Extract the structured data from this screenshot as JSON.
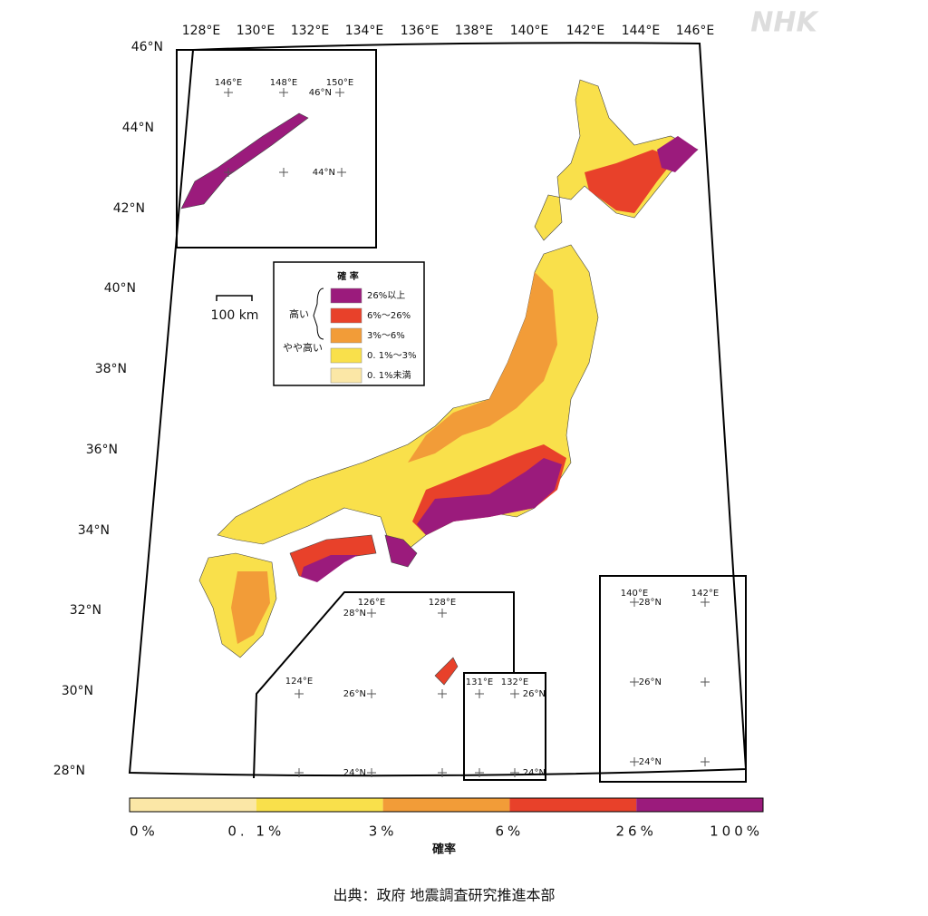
{
  "logo": "NHK",
  "map": {
    "lon_labels": [
      "128°E",
      "130°E",
      "132°E",
      "134°E",
      "136°E",
      "138°E",
      "140°E",
      "142°E",
      "144°E",
      "146°E"
    ],
    "lat_labels": [
      "46°N",
      "44°N",
      "42°N",
      "40°N",
      "38°N",
      "36°N",
      "34°N",
      "32°N",
      "30°N",
      "28°N"
    ],
    "scale_bar": "100 km",
    "inset_north": [
      "146°E",
      "148°E",
      "150°E",
      "46°N",
      "44°N"
    ],
    "inset_south": [
      "126°E",
      "128°E",
      "28°N",
      "124°E",
      "26°N",
      "24°N"
    ],
    "inset_small": [
      "131°E",
      "132°E",
      "26°N",
      "24°N"
    ],
    "inset_east": [
      "140°E",
      "142°E",
      "28°N",
      "26°N",
      "24°N"
    ]
  },
  "legend": {
    "title": "確 率",
    "group_high": "高い",
    "group_somewhat": "やや高い",
    "items": [
      {
        "label": "26%以上",
        "color": "#9b1b7c"
      },
      {
        "label": "6%～26%",
        "color": "#e8412a"
      },
      {
        "label": "3%～6%",
        "color": "#f29c38"
      },
      {
        "label": "0. 1%～3%",
        "color": "#f9e04b"
      },
      {
        "label": "0. 1%未満",
        "color": "#fbe7a6"
      }
    ]
  },
  "colorbar": {
    "title": "確率",
    "labels": [
      "0%",
      "0. 1%",
      "3%",
      "6%",
      "26%",
      "100%"
    ],
    "colors": [
      "#fbe7a6",
      "#f9e04b",
      "#f29c38",
      "#e8412a",
      "#9b1b7c"
    ]
  },
  "source": "出典：政府 地震調査研究推進本部"
}
